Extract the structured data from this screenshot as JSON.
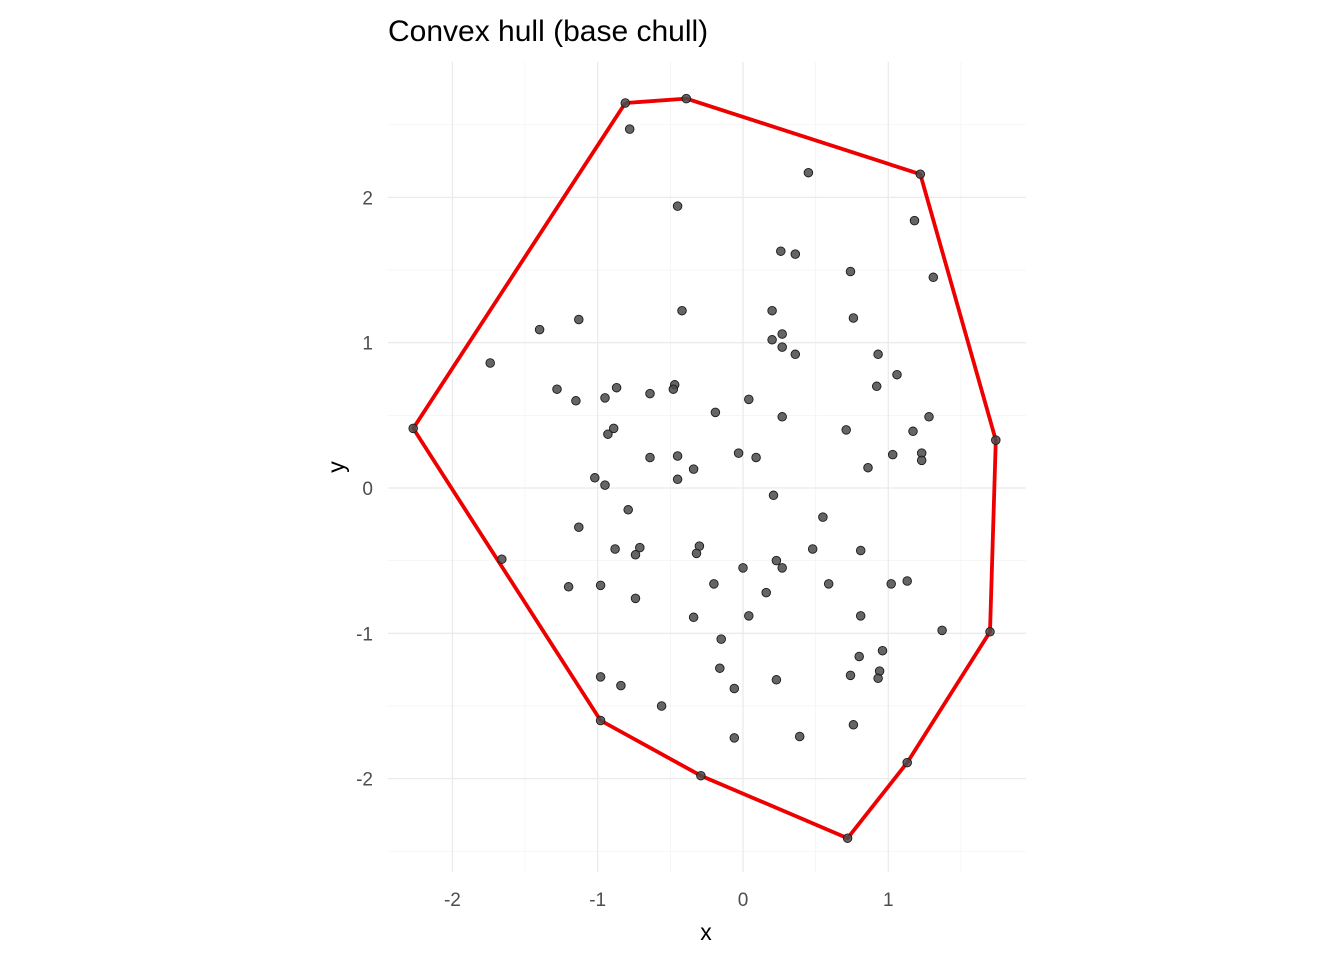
{
  "chart_data": {
    "type": "scatter",
    "title": "Convex hull (base chull)",
    "xlabel": "x",
    "ylabel": "y",
    "xlim": [
      -2.3,
      1.7
    ],
    "ylim": [
      -2.5,
      2.7
    ],
    "xticks": [
      -2,
      -1,
      0,
      1
    ],
    "yticks": [
      -2,
      -1,
      0,
      1,
      2
    ],
    "grid": true,
    "legend": "none",
    "colors": {
      "points": "#4a4a4a",
      "hull": "#ee0000",
      "grid": "#ebebeb"
    },
    "points": [
      [
        -0.81,
        2.65
      ],
      [
        -0.39,
        2.68
      ],
      [
        -0.78,
        2.47
      ],
      [
        1.22,
        2.16
      ],
      [
        0.45,
        2.17
      ],
      [
        -0.45,
        1.94
      ],
      [
        1.18,
        1.84
      ],
      [
        0.26,
        1.63
      ],
      [
        0.36,
        1.61
      ],
      [
        0.74,
        1.49
      ],
      [
        1.31,
        1.45
      ],
      [
        -0.42,
        1.22
      ],
      [
        0.2,
        1.22
      ],
      [
        -1.13,
        1.16
      ],
      [
        0.76,
        1.17
      ],
      [
        -1.4,
        1.09
      ],
      [
        0.27,
        1.06
      ],
      [
        0.2,
        1.02
      ],
      [
        0.27,
        0.97
      ],
      [
        0.36,
        0.92
      ],
      [
        0.93,
        0.92
      ],
      [
        -1.74,
        0.86
      ],
      [
        1.06,
        0.78
      ],
      [
        -0.47,
        0.71
      ],
      [
        -0.48,
        0.68
      ],
      [
        -1.28,
        0.68
      ],
      [
        -0.87,
        0.69
      ],
      [
        0.92,
        0.7
      ],
      [
        -0.64,
        0.65
      ],
      [
        -0.95,
        0.62
      ],
      [
        -1.15,
        0.6
      ],
      [
        0.04,
        0.61
      ],
      [
        -0.19,
        0.52
      ],
      [
        0.27,
        0.49
      ],
      [
        1.28,
        0.49
      ],
      [
        -0.89,
        0.41
      ],
      [
        -0.93,
        0.37
      ],
      [
        0.71,
        0.4
      ],
      [
        1.17,
        0.39
      ],
      [
        -2.27,
        0.41
      ],
      [
        1.74,
        0.33
      ],
      [
        -0.03,
        0.24
      ],
      [
        1.23,
        0.24
      ],
      [
        1.03,
        0.23
      ],
      [
        -0.45,
        0.22
      ],
      [
        -0.64,
        0.21
      ],
      [
        0.09,
        0.21
      ],
      [
        1.23,
        0.19
      ],
      [
        0.86,
        0.14
      ],
      [
        -0.34,
        0.13
      ],
      [
        -1.02,
        0.07
      ],
      [
        -0.45,
        0.06
      ],
      [
        -0.95,
        0.02
      ],
      [
        0.21,
        -0.05
      ],
      [
        -0.79,
        -0.15
      ],
      [
        0.55,
        -0.2
      ],
      [
        -1.13,
        -0.27
      ],
      [
        -0.88,
        -0.42
      ],
      [
        -0.71,
        -0.41
      ],
      [
        -0.3,
        -0.4
      ],
      [
        -0.74,
        -0.46
      ],
      [
        -0.32,
        -0.45
      ],
      [
        0.48,
        -0.42
      ],
      [
        0.81,
        -0.43
      ],
      [
        -1.66,
        -0.49
      ],
      [
        0.23,
        -0.5
      ],
      [
        0.27,
        -0.55
      ],
      [
        0.0,
        -0.55
      ],
      [
        -0.2,
        -0.66
      ],
      [
        0.59,
        -0.66
      ],
      [
        1.02,
        -0.66
      ],
      [
        1.13,
        -0.64
      ],
      [
        -0.98,
        -0.67
      ],
      [
        -1.2,
        -0.68
      ],
      [
        0.16,
        -0.72
      ],
      [
        -0.74,
        -0.76
      ],
      [
        0.04,
        -0.88
      ],
      [
        -0.34,
        -0.89
      ],
      [
        0.81,
        -0.88
      ],
      [
        1.37,
        -0.98
      ],
      [
        1.7,
        -0.99
      ],
      [
        -0.15,
        -1.04
      ],
      [
        0.96,
        -1.12
      ],
      [
        0.8,
        -1.16
      ],
      [
        -0.16,
        -1.24
      ],
      [
        0.94,
        -1.26
      ],
      [
        -0.98,
        -1.3
      ],
      [
        0.74,
        -1.29
      ],
      [
        0.93,
        -1.31
      ],
      [
        0.23,
        -1.32
      ],
      [
        -0.84,
        -1.36
      ],
      [
        -0.06,
        -1.38
      ],
      [
        -0.56,
        -1.5
      ],
      [
        -0.98,
        -1.6
      ],
      [
        0.76,
        -1.63
      ],
      [
        -0.06,
        -1.72
      ],
      [
        0.39,
        -1.71
      ],
      [
        1.13,
        -1.89
      ],
      [
        -0.29,
        -1.98
      ],
      [
        0.72,
        -2.41
      ]
    ],
    "hull": [
      [
        -0.81,
        2.65
      ],
      [
        -0.39,
        2.68
      ],
      [
        1.22,
        2.16
      ],
      [
        1.74,
        0.33
      ],
      [
        1.7,
        -0.99
      ],
      [
        1.13,
        -1.89
      ],
      [
        0.72,
        -2.41
      ],
      [
        -0.29,
        -1.98
      ],
      [
        -0.98,
        -1.6
      ],
      [
        -2.27,
        0.41
      ],
      [
        -0.81,
        2.65
      ]
    ]
  }
}
